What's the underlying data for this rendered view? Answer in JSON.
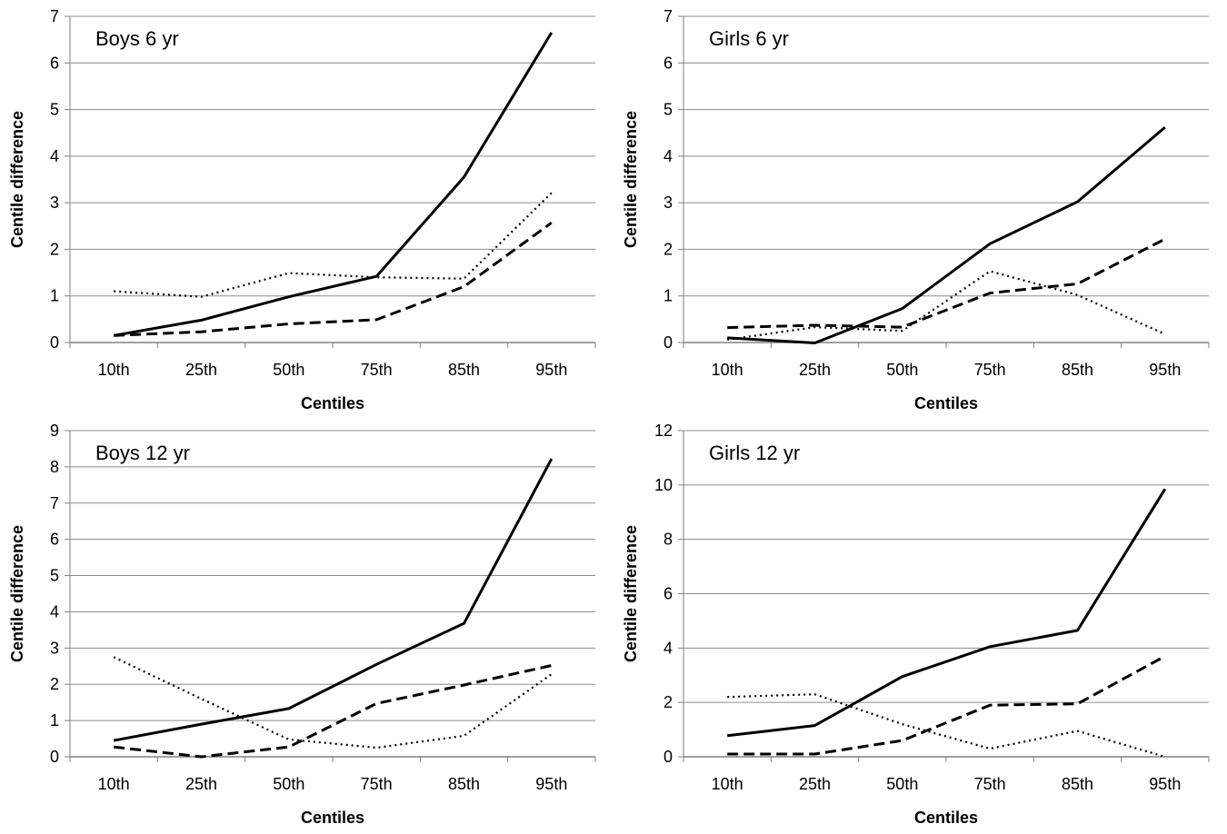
{
  "chart_data": [
    {
      "type": "line",
      "title": "Boys 6 yr",
      "xlabel": "Centiles",
      "ylabel": "Centile difference",
      "categories": [
        "10th",
        "25th",
        "50th",
        "75th",
        "85th",
        "95th"
      ],
      "ylim": [
        0,
        7
      ],
      "yticks": [
        0,
        1,
        2,
        3,
        4,
        5,
        6,
        7
      ],
      "grid": true,
      "series": [
        {
          "style": "solid",
          "values": [
            0.15,
            0.48,
            0.98,
            1.42,
            3.55,
            6.65
          ]
        },
        {
          "style": "dashed",
          "values": [
            0.15,
            0.23,
            0.4,
            0.49,
            1.2,
            2.57
          ]
        },
        {
          "style": "dotted",
          "values": [
            1.1,
            0.98,
            1.49,
            1.4,
            1.37,
            3.21
          ]
        }
      ]
    },
    {
      "type": "line",
      "title": "Girls 6 yr",
      "xlabel": "Centiles",
      "ylabel": "Centile difference",
      "categories": [
        "10th",
        "25th",
        "50th",
        "75th",
        "85th",
        "95th"
      ],
      "ylim": [
        0,
        7
      ],
      "yticks": [
        0,
        1,
        2,
        3,
        4,
        5,
        6,
        7
      ],
      "grid": true,
      "series": [
        {
          "style": "solid",
          "values": [
            0.1,
            -0.01,
            0.73,
            2.12,
            3.02,
            4.62
          ]
        },
        {
          "style": "dashed",
          "values": [
            0.32,
            0.37,
            0.33,
            1.06,
            1.26,
            2.22
          ]
        },
        {
          "style": "dotted",
          "values": [
            0.06,
            0.33,
            0.25,
            1.53,
            1.02,
            0.18
          ]
        }
      ]
    },
    {
      "type": "line",
      "title": "Boys 12 yr",
      "xlabel": "Centiles",
      "ylabel": "Centile difference",
      "categories": [
        "10th",
        "25th",
        "50th",
        "75th",
        "85th",
        "95th"
      ],
      "ylim": [
        0,
        9
      ],
      "yticks": [
        0,
        1,
        2,
        3,
        4,
        5,
        6,
        7,
        8,
        9
      ],
      "grid": true,
      "series": [
        {
          "style": "solid",
          "values": [
            0.45,
            0.9,
            1.33,
            2.55,
            3.68,
            8.22
          ]
        },
        {
          "style": "dashed",
          "values": [
            0.27,
            0.0,
            0.27,
            1.47,
            1.98,
            2.52
          ]
        },
        {
          "style": "dotted",
          "values": [
            2.75,
            1.6,
            0.48,
            0.25,
            0.58,
            2.28
          ]
        }
      ]
    },
    {
      "type": "line",
      "title": "Girls 12 yr",
      "xlabel": "Centiles",
      "ylabel": "Centile difference",
      "categories": [
        "10th",
        "25th",
        "50th",
        "75th",
        "85th",
        "95th"
      ],
      "ylim": [
        0,
        12
      ],
      "yticks": [
        0,
        2,
        4,
        6,
        8,
        10,
        12
      ],
      "grid": true,
      "series": [
        {
          "style": "solid",
          "values": [
            0.78,
            1.15,
            2.95,
            4.05,
            4.65,
            9.85
          ]
        },
        {
          "style": "dashed",
          "values": [
            0.1,
            0.1,
            0.6,
            1.9,
            1.95,
            3.7
          ]
        },
        {
          "style": "dotted",
          "values": [
            2.2,
            2.3,
            1.2,
            0.3,
            0.95,
            0.0
          ]
        }
      ]
    }
  ]
}
